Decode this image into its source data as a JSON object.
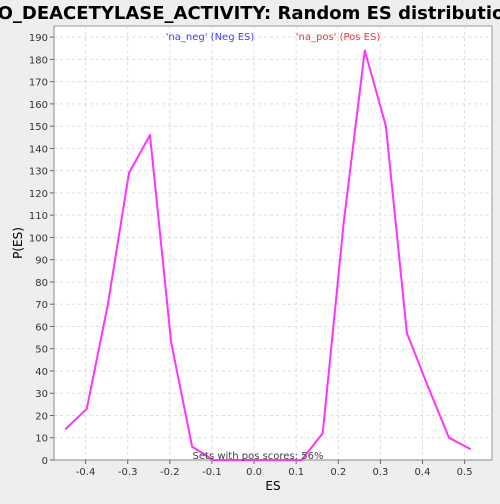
{
  "chart_data": {
    "type": "line",
    "title": "GO_DEACETYLASE_ACTIVITY: Random ES distribution",
    "xlabel": "ES",
    "ylabel": "P(ES)",
    "xlim": [
      -0.475,
      0.565
    ],
    "ylim": [
      0,
      195
    ],
    "x_ticks": [
      "-0.4",
      "-0.3",
      "-0.2",
      "-0.1",
      "0.0",
      "0.1",
      "0.2",
      "0.3",
      "0.4",
      "0.5"
    ],
    "y_ticks": [
      "0",
      "10",
      "20",
      "30",
      "40",
      "50",
      "60",
      "70",
      "80",
      "90",
      "100",
      "110",
      "120",
      "130",
      "140",
      "150",
      "160",
      "170",
      "180",
      "190"
    ],
    "grid": true,
    "legend": [
      {
        "label": "'na_neg' (Neg ES)",
        "color": "#4040ff"
      },
      {
        "label": "'na_pos' (Pos ES)",
        "color": "#ff3030"
      }
    ],
    "annotation": "Sets with pos scores: 56%",
    "series": [
      {
        "color": "#ff33ff",
        "x": [
          -0.447,
          -0.397,
          -0.347,
          -0.297,
          -0.247,
          -0.197,
          -0.147,
          -0.097,
          -0.047,
          0.003,
          0.053,
          0.113,
          0.163,
          0.213,
          0.263,
          0.313,
          0.363,
          0.413,
          0.463,
          0.513
        ],
        "y": [
          14,
          23,
          70,
          129,
          146,
          53,
          6,
          0,
          0,
          0,
          0,
          0,
          12,
          107,
          184,
          150,
          57,
          33,
          10,
          5
        ]
      }
    ]
  }
}
